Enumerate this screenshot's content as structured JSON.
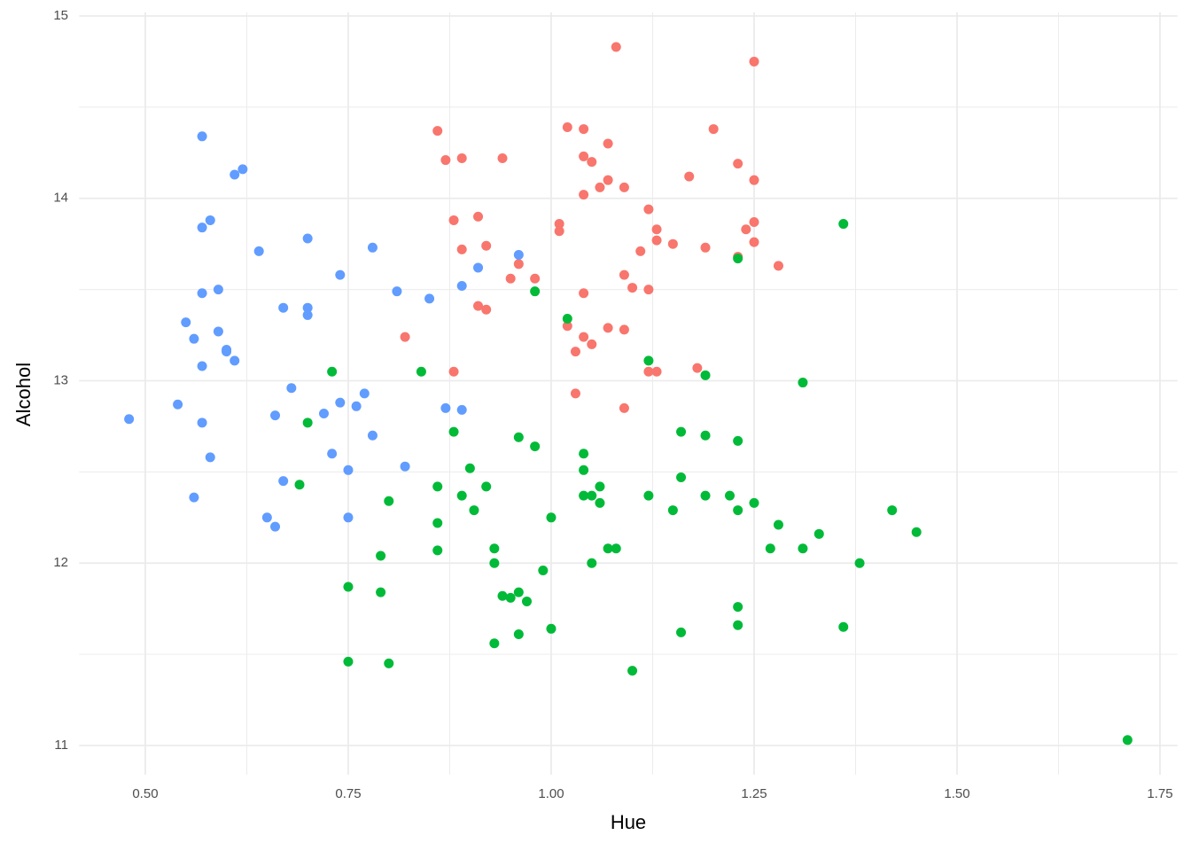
{
  "chart_data": {
    "type": "scatter",
    "x_label": "Hue",
    "y_label": "Alcohol",
    "xlim": [
      0.4185,
      1.7715
    ],
    "ylim": [
      10.84,
      15.02
    ],
    "xticks": [
      {
        "value": 0.5,
        "label": "0.50"
      },
      {
        "value": 0.75,
        "label": "0.75"
      },
      {
        "value": 1.0,
        "label": "1.00"
      },
      {
        "value": 1.25,
        "label": "1.25"
      },
      {
        "value": 1.5,
        "label": "1.50"
      },
      {
        "value": 1.75,
        "label": "1.75"
      }
    ],
    "yticks": [
      11,
      12,
      13,
      14,
      15
    ],
    "x_minor_ticks": [
      0.625,
      0.875,
      1.125,
      1.375,
      1.625
    ],
    "y_minor_ticks": [
      11.5,
      12.5,
      13.5,
      14.5
    ],
    "grid": true,
    "series": [
      {
        "color": "#F8766D",
        "x": [
          1.08,
          1.25,
          0.86,
          1.02,
          1.04,
          1.2,
          0.87,
          0.89,
          0.94,
          1.04,
          1.05,
          1.07,
          1.23,
          1.17,
          1.25,
          1.07,
          1.06,
          1.09,
          1.04,
          1.12,
          0.91,
          0.88,
          1.01,
          1.25,
          1.01,
          1.13,
          1.24,
          1.13,
          1.15,
          1.25,
          0.92,
          0.89,
          1.19,
          1.11,
          1.23,
          1.28,
          0.96,
          1.09,
          0.95,
          0.98,
          1.1,
          1.12,
          1.04,
          0.91,
          0.92,
          1.02,
          1.07,
          1.09,
          0.82,
          1.04,
          1.05,
          1.03,
          1.18,
          0.88,
          1.12,
          1.13,
          1.03,
          1.09
        ],
        "y": [
          14.83,
          14.75,
          14.37,
          14.39,
          14.38,
          14.38,
          14.21,
          14.22,
          14.22,
          14.23,
          14.2,
          14.3,
          14.19,
          14.12,
          14.1,
          14.1,
          14.06,
          14.06,
          14.02,
          13.94,
          13.9,
          13.88,
          13.86,
          13.87,
          13.82,
          13.83,
          13.83,
          13.77,
          13.75,
          13.76,
          13.74,
          13.72,
          13.73,
          13.71,
          13.68,
          13.63,
          13.64,
          13.58,
          13.56,
          13.56,
          13.51,
          13.5,
          13.48,
          13.41,
          13.39,
          13.3,
          13.29,
          13.28,
          13.24,
          13.24,
          13.2,
          13.16,
          13.07,
          13.05,
          13.05,
          13.05,
          12.93,
          12.85
        ]
      },
      {
        "color": "#00BA38",
        "x": [
          1.36,
          1.23,
          0.98,
          1.02,
          1.12,
          0.73,
          0.84,
          1.19,
          1.31,
          0.7,
          0.88,
          1.16,
          0.96,
          1.19,
          1.23,
          0.98,
          1.04,
          0.9,
          1.04,
          1.16,
          0.69,
          0.86,
          0.92,
          1.06,
          0.89,
          1.04,
          1.05,
          1.12,
          1.19,
          1.22,
          0.8,
          1.06,
          1.25,
          0.905,
          1.15,
          1.23,
          1.42,
          1.0,
          0.86,
          1.28,
          1.45,
          1.33,
          0.93,
          0.86,
          1.07,
          1.08,
          1.27,
          1.31,
          0.79,
          0.93,
          1.05,
          1.38,
          0.99,
          0.75,
          0.79,
          0.96,
          0.94,
          0.95,
          0.97,
          1.23,
          1.23,
          1.36,
          1.0,
          1.16,
          0.96,
          0.93,
          0.75,
          0.8,
          1.1,
          1.71
        ],
        "y": [
          13.86,
          13.67,
          13.49,
          13.34,
          13.11,
          13.05,
          13.05,
          13.03,
          12.99,
          12.77,
          12.72,
          12.72,
          12.69,
          12.7,
          12.67,
          12.64,
          12.6,
          12.52,
          12.51,
          12.47,
          12.43,
          12.42,
          12.42,
          12.42,
          12.37,
          12.37,
          12.37,
          12.37,
          12.37,
          12.37,
          12.34,
          12.33,
          12.33,
          12.29,
          12.29,
          12.29,
          12.29,
          12.25,
          12.22,
          12.21,
          12.17,
          12.16,
          12.08,
          12.07,
          12.08,
          12.08,
          12.08,
          12.08,
          12.04,
          12.0,
          12.0,
          12.0,
          11.96,
          11.87,
          11.84,
          11.84,
          11.82,
          11.81,
          11.79,
          11.76,
          11.66,
          11.65,
          11.64,
          11.62,
          11.61,
          11.56,
          11.46,
          11.45,
          11.41,
          11.03
        ]
      },
      {
        "color": "#619CFF",
        "x": [
          0.48,
          0.54,
          0.55,
          0.56,
          0.56,
          0.57,
          0.57,
          0.57,
          0.57,
          0.57,
          0.58,
          0.58,
          0.59,
          0.59,
          0.6,
          0.6,
          0.61,
          0.61,
          0.62,
          0.64,
          0.65,
          0.66,
          0.66,
          0.67,
          0.67,
          0.68,
          0.7,
          0.7,
          0.7,
          0.72,
          0.73,
          0.74,
          0.74,
          0.75,
          0.75,
          0.76,
          0.77,
          0.78,
          0.78,
          0.81,
          0.82,
          0.85,
          0.87,
          0.89,
          0.89,
          0.91,
          0.96
        ],
        "y": [
          12.79,
          12.87,
          13.32,
          13.23,
          12.36,
          14.34,
          13.84,
          13.48,
          13.08,
          12.77,
          13.88,
          12.58,
          13.5,
          13.27,
          13.17,
          13.16,
          14.13,
          13.11,
          14.16,
          13.71,
          12.25,
          12.81,
          12.2,
          13.4,
          12.45,
          12.96,
          13.78,
          13.4,
          13.36,
          12.82,
          12.6,
          13.58,
          12.88,
          12.51,
          12.25,
          12.86,
          12.93,
          13.73,
          12.7,
          13.49,
          12.53,
          13.45,
          12.85,
          13.52,
          12.84,
          13.62,
          13.69
        ]
      }
    ]
  }
}
